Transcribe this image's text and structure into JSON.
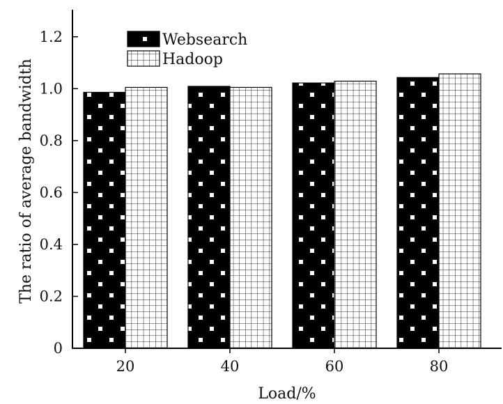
{
  "chart_data": {
    "type": "bar",
    "title": "",
    "xlabel": "Load/%",
    "ylabel": "The ratio of average bandwidth",
    "categories": [
      "20",
      "40",
      "60",
      "80"
    ],
    "series": [
      {
        "name": "Websearch",
        "values": [
          0.986,
          1.009,
          1.022,
          1.043
        ],
        "pattern": "black-with-white-dots"
      },
      {
        "name": "Hadoop",
        "values": [
          1.005,
          1.005,
          1.029,
          1.057
        ],
        "pattern": "white-grid"
      }
    ],
    "yticks": [
      "0",
      "0.2",
      "0.4",
      "0.6",
      "0.8",
      "1.0",
      "1.2"
    ],
    "ylim": [
      0,
      1.3
    ],
    "grid": false,
    "legend": "top-left"
  }
}
